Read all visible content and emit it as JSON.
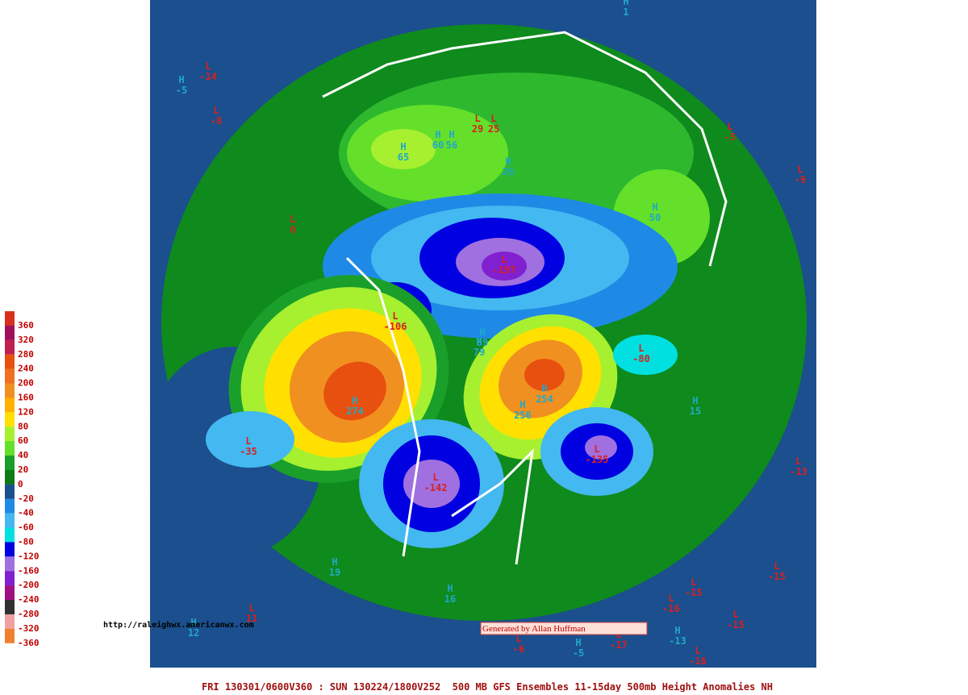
{
  "legend": {
    "labels": [
      "360",
      "320",
      "280",
      "240",
      "200",
      "160",
      "120",
      "80",
      "60",
      "40",
      "20",
      "0",
      "-20",
      "-40",
      "-60",
      "-80",
      "-120",
      "-160",
      "-200",
      "-240",
      "-280",
      "-320",
      "-360"
    ]
  },
  "centers": [
    {
      "type": "H",
      "value": "1"
    },
    {
      "type": "L",
      "value": "-14"
    },
    {
      "type": "H",
      "value": "-5"
    },
    {
      "type": "L",
      "value": "-8"
    },
    {
      "type": "H",
      "value": "65"
    },
    {
      "type": "H",
      "value": "60"
    },
    {
      "type": "H",
      "value": "56"
    },
    {
      "type": "L",
      "value": "29"
    },
    {
      "type": "L",
      "value": "25"
    },
    {
      "type": "H",
      "value": "26"
    },
    {
      "type": "H",
      "value": "50"
    },
    {
      "type": "L",
      "value": "-5"
    },
    {
      "type": "L",
      "value": "-9"
    },
    {
      "type": "L",
      "value": "0"
    },
    {
      "type": "L",
      "value": "-197"
    },
    {
      "type": "L",
      "value": "-106"
    },
    {
      "type": "H",
      "value": "89"
    },
    {
      "type": "H",
      "value": "79"
    },
    {
      "type": "L",
      "value": "-80"
    },
    {
      "type": "H",
      "value": "274"
    },
    {
      "type": "H",
      "value": "254"
    },
    {
      "type": "H",
      "value": "256"
    },
    {
      "type": "L",
      "value": "-35"
    },
    {
      "type": "L",
      "value": "-135"
    },
    {
      "type": "L",
      "value": "-142"
    },
    {
      "type": "H",
      "value": "15"
    },
    {
      "type": "L",
      "value": "-13"
    },
    {
      "type": "H",
      "value": "19"
    },
    {
      "type": "H",
      "value": "16"
    },
    {
      "type": "L",
      "value": "11"
    },
    {
      "type": "H",
      "value": "12"
    },
    {
      "type": "L",
      "value": "-15"
    },
    {
      "type": "L",
      "value": "-15"
    },
    {
      "type": "L",
      "value": "-16"
    },
    {
      "type": "L",
      "value": "-15"
    },
    {
      "type": "H",
      "value": "-13"
    },
    {
      "type": "L",
      "value": "-16"
    },
    {
      "type": "L",
      "value": "-17"
    },
    {
      "type": "H",
      "value": "-5"
    },
    {
      "type": "L",
      "value": "-6"
    }
  ],
  "url": "http://raleighwx.americanwx.com",
  "credit": "Generated by Allan Huffman",
  "footer": "FRI 130301/0600V360 : SUN 130224/1800V252  500 MB GFS Ensembles 11-15day 500mb Height Anomalies NH"
}
